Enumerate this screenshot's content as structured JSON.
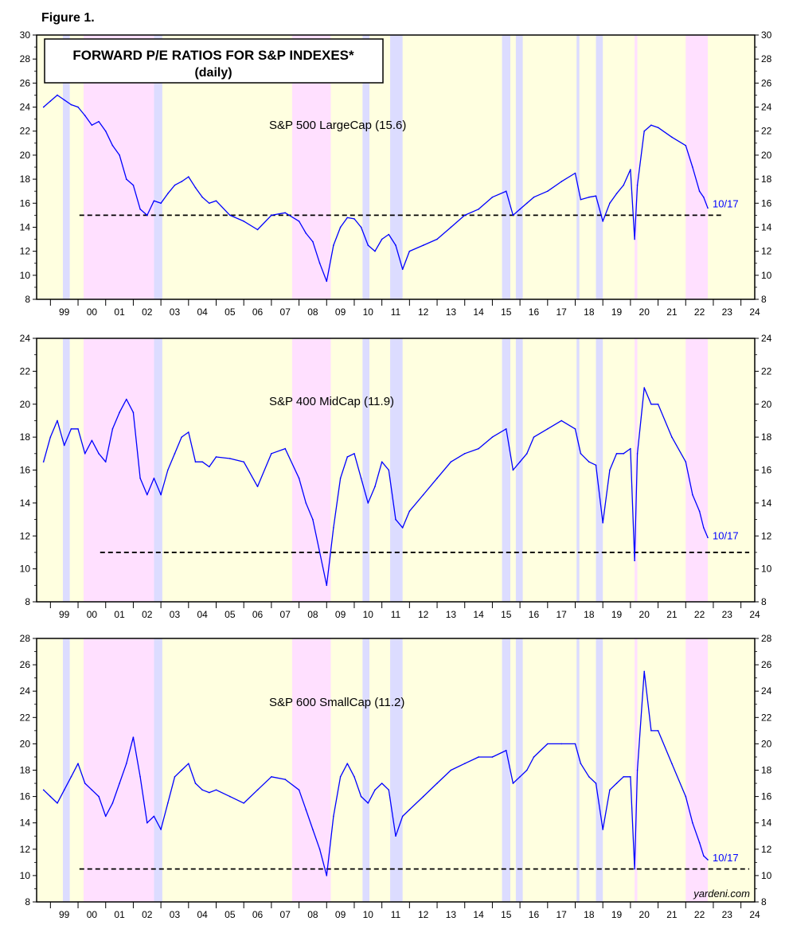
{
  "figure_label": "Figure 1.",
  "title": "FORWARD P/E RATIOS FOR S&P INDEXES*",
  "subtitle": "(daily)",
  "watermark": "yardeni.com",
  "colors": {
    "background": "#ffffe0",
    "recession_band": "#ffe0ff",
    "correction_band": "#dcdcff",
    "series_line": "#0000ff",
    "reference_line": "#000000"
  },
  "x_tick_labels": [
    "99",
    "00",
    "01",
    "02",
    "03",
    "04",
    "05",
    "06",
    "07",
    "08",
    "09",
    "10",
    "11",
    "12",
    "13",
    "14",
    "15",
    "16",
    "17",
    "18",
    "19",
    "20",
    "21",
    "22",
    "23",
    "24"
  ],
  "shaded_periods": [
    {
      "start": 1999.45,
      "end": 1999.7,
      "kind": "correction"
    },
    {
      "start": 2000.2,
      "end": 2002.75,
      "kind": "recession"
    },
    {
      "start": 2002.75,
      "end": 2003.05,
      "kind": "correction"
    },
    {
      "start": 2007.75,
      "end": 2009.15,
      "kind": "recession"
    },
    {
      "start": 2010.3,
      "end": 2010.55,
      "kind": "correction"
    },
    {
      "start": 2011.3,
      "end": 2011.75,
      "kind": "correction"
    },
    {
      "start": 2015.35,
      "end": 2015.65,
      "kind": "correction"
    },
    {
      "start": 2015.85,
      "end": 2016.1,
      "kind": "correction"
    },
    {
      "start": 2018.05,
      "end": 2018.15,
      "kind": "correction"
    },
    {
      "start": 2018.75,
      "end": 2019.0,
      "kind": "correction"
    },
    {
      "start": 2020.15,
      "end": 2020.25,
      "kind": "recession"
    },
    {
      "start": 2022.0,
      "end": 2022.8,
      "kind": "recession"
    }
  ],
  "chart_data": [
    {
      "type": "line",
      "label": "S&P 500 LargeCap (15.6)",
      "end_label": "10/17",
      "reference_value": 15.0,
      "reference_range": [
        2000.05,
        2023.35
      ],
      "ylim": [
        8,
        30
      ],
      "yticks": [
        8,
        10,
        12,
        14,
        16,
        18,
        20,
        22,
        24,
        26,
        28,
        30
      ],
      "xlim": [
        1998.5,
        2024.5
      ],
      "series": [
        {
          "x": [
            1998.75,
            1999.0,
            1999.25,
            1999.5,
            1999.75,
            2000.0,
            2000.25,
            2000.5,
            2000.75,
            2001.0,
            2001.25,
            2001.5,
            2001.75,
            2002.0,
            2002.25,
            2002.5,
            2002.75,
            2003.0,
            2003.25,
            2003.5,
            2003.75,
            2004.0,
            2004.25,
            2004.5,
            2004.75,
            2005.0,
            2005.5,
            2006.0,
            2006.5,
            2007.0,
            2007.5,
            2008.0,
            2008.25,
            2008.5,
            2008.75,
            2009.0,
            2009.25,
            2009.5,
            2009.75,
            2010.0,
            2010.25,
            2010.5,
            2010.75,
            2011.0,
            2011.25,
            2011.5,
            2011.75,
            2012.0,
            2012.5,
            2013.0,
            2013.5,
            2014.0,
            2014.5,
            2015.0,
            2015.5,
            2015.75,
            2016.0,
            2016.25,
            2016.5,
            2017.0,
            2017.5,
            2018.0,
            2018.2,
            2018.5,
            2018.75,
            2019.0,
            2019.25,
            2019.5,
            2019.75,
            2020.0,
            2020.15,
            2020.25,
            2020.5,
            2020.75,
            2021.0,
            2021.5,
            2022.0,
            2022.25,
            2022.5,
            2022.65,
            2022.8
          ],
          "y": [
            24.0,
            24.5,
            25.0,
            24.6,
            24.2,
            24.0,
            23.3,
            22.5,
            22.8,
            22.0,
            20.8,
            20.0,
            18.0,
            17.5,
            15.5,
            15.0,
            16.2,
            16.0,
            16.8,
            17.5,
            17.8,
            18.2,
            17.3,
            16.5,
            16.0,
            16.2,
            15.0,
            14.5,
            13.8,
            15.0,
            15.2,
            14.5,
            13.5,
            12.8,
            11.0,
            9.5,
            12.5,
            14.0,
            14.8,
            14.7,
            14.0,
            12.5,
            12.0,
            13.0,
            13.4,
            12.5,
            10.5,
            12.0,
            12.5,
            13.0,
            14.0,
            15.0,
            15.5,
            16.5,
            17.0,
            15.0,
            15.5,
            16.0,
            16.5,
            17.0,
            17.8,
            18.5,
            16.3,
            16.5,
            16.6,
            14.5,
            16.0,
            16.8,
            17.5,
            18.8,
            13.0,
            17.5,
            22.0,
            22.5,
            22.3,
            21.5,
            20.8,
            19.0,
            17.0,
            16.5,
            15.6
          ]
        }
      ]
    },
    {
      "type": "line",
      "label": "S&P 400 MidCap (11.9)",
      "end_label": "10/17",
      "reference_value": 11.0,
      "reference_range": [
        2000.8,
        2024.3
      ],
      "ylim": [
        8,
        24
      ],
      "yticks": [
        8,
        10,
        12,
        14,
        16,
        18,
        20,
        22,
        24
      ],
      "xlim": [
        1998.5,
        2024.5
      ],
      "series": [
        {
          "x": [
            1998.75,
            1999.0,
            1999.25,
            1999.5,
            1999.75,
            2000.0,
            2000.25,
            2000.5,
            2000.75,
            2001.0,
            2001.25,
            2001.5,
            2001.75,
            2002.0,
            2002.25,
            2002.5,
            2002.75,
            2003.0,
            2003.25,
            2003.5,
            2003.75,
            2004.0,
            2004.25,
            2004.5,
            2004.75,
            2005.0,
            2005.5,
            2006.0,
            2006.5,
            2007.0,
            2007.5,
            2008.0,
            2008.25,
            2008.5,
            2008.75,
            2009.0,
            2009.25,
            2009.5,
            2009.75,
            2010.0,
            2010.25,
            2010.5,
            2010.75,
            2011.0,
            2011.25,
            2011.5,
            2011.75,
            2012.0,
            2012.5,
            2013.0,
            2013.5,
            2014.0,
            2014.5,
            2015.0,
            2015.5,
            2015.75,
            2016.0,
            2016.25,
            2016.5,
            2017.0,
            2017.5,
            2018.0,
            2018.2,
            2018.5,
            2018.75,
            2019.0,
            2019.25,
            2019.5,
            2019.75,
            2020.0,
            2020.15,
            2020.25,
            2020.5,
            2020.75,
            2021.0,
            2021.5,
            2022.0,
            2022.25,
            2022.5,
            2022.65,
            2022.8
          ],
          "y": [
            16.5,
            18.0,
            19.0,
            17.5,
            18.5,
            18.5,
            17.0,
            17.8,
            17.0,
            16.5,
            18.5,
            19.5,
            20.3,
            19.5,
            15.5,
            14.5,
            15.5,
            14.5,
            16.0,
            17.0,
            18.0,
            18.3,
            16.5,
            16.5,
            16.2,
            16.8,
            16.7,
            16.5,
            15.0,
            17.0,
            17.3,
            15.5,
            14.0,
            13.0,
            11.0,
            9.0,
            12.5,
            15.5,
            16.8,
            17.0,
            15.5,
            14.0,
            15.0,
            16.5,
            16.0,
            13.0,
            12.5,
            13.5,
            14.5,
            15.5,
            16.5,
            17.0,
            17.3,
            18.0,
            18.5,
            16.0,
            16.5,
            17.0,
            18.0,
            18.5,
            19.0,
            18.5,
            17.0,
            16.5,
            16.3,
            12.8,
            16.0,
            17.0,
            17.0,
            17.3,
            10.5,
            17.0,
            21.0,
            20.0,
            20.0,
            18.0,
            16.5,
            14.5,
            13.5,
            12.5,
            11.9
          ]
        }
      ]
    },
    {
      "type": "line",
      "label": "S&P 600 SmallCap (11.2)",
      "end_label": "10/17",
      "reference_value": 10.5,
      "reference_range": [
        2000.05,
        2024.3
      ],
      "ylim": [
        8,
        28
      ],
      "yticks": [
        8,
        10,
        12,
        14,
        16,
        18,
        20,
        22,
        24,
        26,
        28
      ],
      "xlim": [
        1998.5,
        2024.5
      ],
      "series": [
        {
          "x": [
            1998.75,
            1999.0,
            1999.25,
            1999.5,
            1999.75,
            2000.0,
            2000.25,
            2000.5,
            2000.75,
            2001.0,
            2001.25,
            2001.5,
            2001.75,
            2002.0,
            2002.25,
            2002.5,
            2002.75,
            2003.0,
            2003.25,
            2003.5,
            2003.75,
            2004.0,
            2004.25,
            2004.5,
            2004.75,
            2005.0,
            2005.5,
            2006.0,
            2006.5,
            2007.0,
            2007.5,
            2008.0,
            2008.25,
            2008.5,
            2008.75,
            2009.0,
            2009.25,
            2009.5,
            2009.75,
            2010.0,
            2010.25,
            2010.5,
            2010.75,
            2011.0,
            2011.25,
            2011.5,
            2011.75,
            2012.0,
            2012.5,
            2013.0,
            2013.5,
            2014.0,
            2014.5,
            2015.0,
            2015.5,
            2015.75,
            2016.0,
            2016.25,
            2016.5,
            2017.0,
            2017.5,
            2018.0,
            2018.2,
            2018.5,
            2018.75,
            2019.0,
            2019.25,
            2019.5,
            2019.75,
            2020.0,
            2020.15,
            2020.25,
            2020.5,
            2020.75,
            2021.0,
            2021.5,
            2022.0,
            2022.25,
            2022.5,
            2022.65,
            2022.8
          ],
          "y": [
            16.5,
            16.0,
            15.5,
            16.5,
            17.5,
            18.5,
            17.0,
            16.5,
            16.0,
            14.5,
            15.5,
            17.0,
            18.5,
            20.5,
            17.5,
            14.0,
            14.5,
            13.5,
            15.5,
            17.5,
            18.0,
            18.5,
            17.0,
            16.5,
            16.3,
            16.5,
            16.0,
            15.5,
            16.5,
            17.5,
            17.3,
            16.5,
            15.0,
            13.5,
            12.0,
            10.0,
            14.5,
            17.5,
            18.5,
            17.5,
            16.0,
            15.5,
            16.5,
            17.0,
            16.5,
            13.0,
            14.5,
            15.0,
            16.0,
            17.0,
            18.0,
            18.5,
            19.0,
            19.0,
            19.5,
            17.0,
            17.5,
            18.0,
            19.0,
            20.0,
            20.0,
            20.0,
            18.5,
            17.5,
            17.0,
            13.5,
            16.5,
            17.0,
            17.5,
            17.5,
            10.5,
            18.0,
            25.5,
            21.0,
            21.0,
            18.5,
            16.0,
            14.0,
            12.5,
            11.5,
            11.2
          ]
        }
      ]
    }
  ]
}
